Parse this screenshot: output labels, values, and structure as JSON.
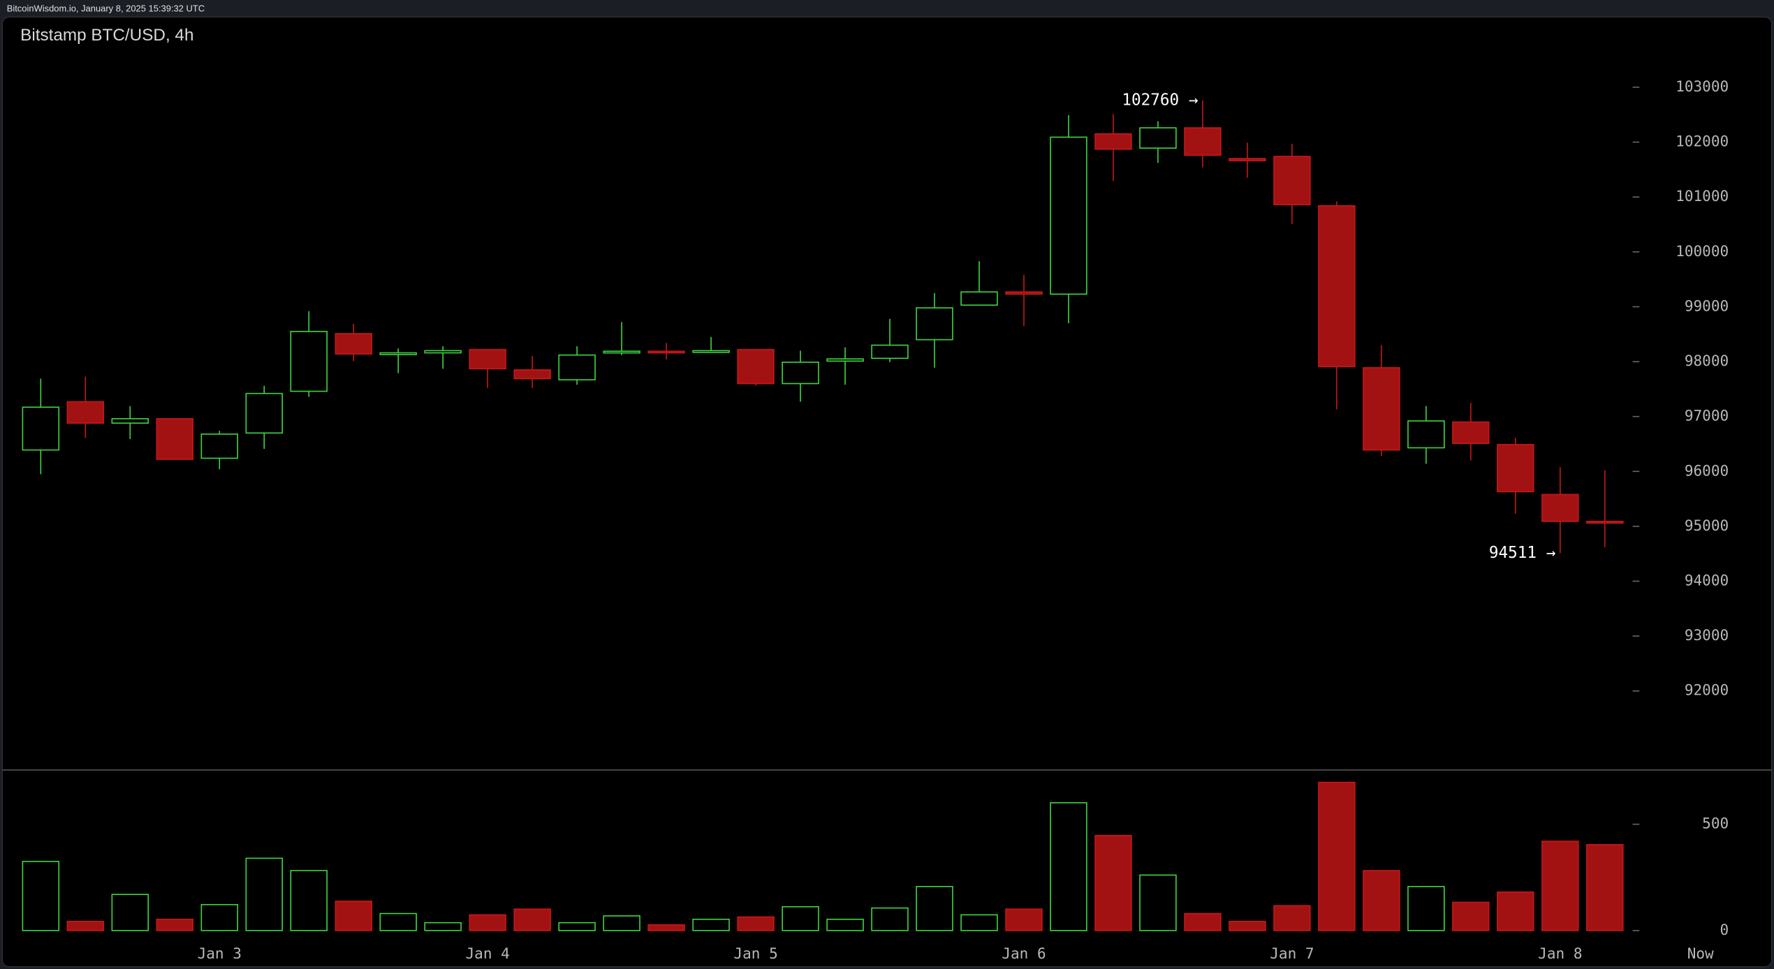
{
  "page": {
    "header": "BitcoinWisdom.io, January 8, 2025 15:39:32 UTC"
  },
  "chart_data": [
    {
      "type": "candlestick",
      "title": "Bitstamp BTC/USD, 4h",
      "open": [
        96390,
        97270,
        96880,
        96960,
        96240,
        96700,
        97460,
        98510,
        98140,
        98160,
        98220,
        97850,
        97670,
        98160,
        98190,
        98180,
        98220,
        97600,
        98010,
        98060,
        98400,
        99030,
        99270,
        99230,
        102150,
        101890,
        102260,
        101700,
        101740,
        100840,
        97890,
        96430,
        96900,
        96490,
        95580,
        95090
      ],
      "high": [
        97690,
        97730,
        97190,
        96960,
        96740,
        97560,
        98920,
        98690,
        98240,
        98280,
        98220,
        98100,
        98280,
        98720,
        98340,
        98450,
        98220,
        98200,
        98260,
        98780,
        99250,
        99830,
        99580,
        102490,
        102510,
        102380,
        102760,
        101990,
        101970,
        100920,
        98300,
        97190,
        97250,
        96610,
        96080,
        96020
      ],
      "low": [
        95950,
        96610,
        96590,
        96220,
        96040,
        96410,
        97360,
        98010,
        97790,
        97870,
        97520,
        97520,
        97580,
        98120,
        98040,
        98180,
        97560,
        97270,
        97580,
        97990,
        97890,
        99030,
        98650,
        98700,
        101290,
        101620,
        101540,
        101350,
        100510,
        97130,
        96280,
        96140,
        96200,
        95230,
        94511,
        94620
      ],
      "close": [
        97170,
        96880,
        96960,
        96220,
        96680,
        97420,
        98550,
        98140,
        98160,
        98200,
        97870,
        97690,
        98120,
        98190,
        98160,
        98200,
        97600,
        97990,
        98050,
        98300,
        98980,
        99270,
        99230,
        102090,
        101870,
        102260,
        101760,
        101660,
        100860,
        97910,
        96390,
        96920,
        96510,
        95630,
        95090,
        95070
      ],
      "annotations": [
        "102760 →",
        "94511 →"
      ],
      "up_color": "#3fd43f",
      "down_color": "#a31212",
      "ylim": [
        90560,
        104280
      ],
      "yticks": [
        92000,
        93000,
        94000,
        95000,
        96000,
        97000,
        98000,
        99000,
        100000,
        101000,
        102000,
        103000
      ]
    },
    {
      "type": "bar",
      "categories": [
        null,
        null,
        null,
        null,
        "Jan 3",
        null,
        null,
        null,
        null,
        null,
        "Jan 4",
        null,
        null,
        null,
        null,
        null,
        "Jan 5",
        null,
        null,
        null,
        null,
        null,
        "Jan 6",
        null,
        null,
        null,
        null,
        null,
        "Jan 7",
        null,
        null,
        null,
        null,
        null,
        "Jan 8",
        null
      ],
      "values": [
        325,
        43,
        170,
        53,
        122,
        340,
        282,
        138,
        80,
        37,
        74,
        101,
        37,
        69,
        27,
        53,
        64,
        112,
        53,
        106,
        207,
        74,
        101,
        601,
        447,
        261,
        80,
        43,
        117,
        697,
        282,
        207,
        133,
        181,
        420,
        404
      ],
      "x_end_label": "Now",
      "ylim": [
        0,
        755
      ],
      "yticks": [
        0,
        500
      ]
    }
  ]
}
